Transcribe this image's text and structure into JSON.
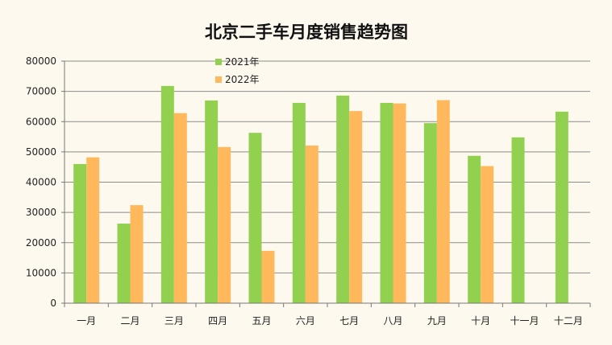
{
  "chart_data": {
    "type": "bar",
    "title": "北京二手车月度销售趋势图",
    "xlabel": "",
    "ylabel": "",
    "categories": [
      "一月",
      "二月",
      "三月",
      "四月",
      "五月",
      "六月",
      "七月",
      "八月",
      "九月",
      "十月",
      "十一月",
      "十二月"
    ],
    "series": [
      {
        "name": "2021年",
        "color": "#92d050",
        "values": [
          46000,
          26300,
          71800,
          67000,
          56300,
          66200,
          68600,
          66200,
          59500,
          48700,
          54800,
          63300
        ]
      },
      {
        "name": "2022年",
        "color": "#ffb95c",
        "values": [
          48200,
          32400,
          62800,
          51600,
          17300,
          52100,
          63500,
          66000,
          67100,
          45300,
          null,
          null
        ]
      }
    ],
    "ylim": [
      0,
      80000
    ],
    "yticks": [
      "0",
      "10000",
      "20000",
      "30000",
      "40000",
      "50000",
      "60000",
      "70000",
      "80000"
    ],
    "grid": true,
    "legend_position": "top-left"
  }
}
